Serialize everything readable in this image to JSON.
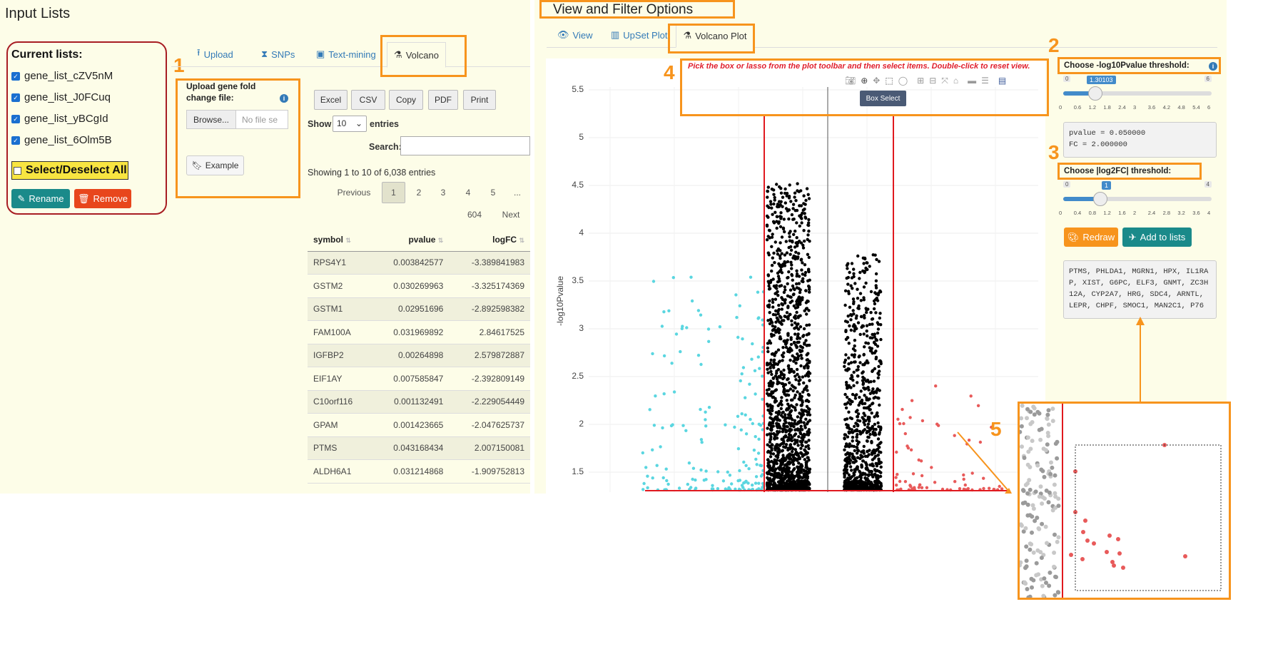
{
  "left": {
    "title": "Input Lists",
    "current_lists_title": "Current lists:",
    "lists": [
      "gene_list_cZV5nM",
      "gene_list_J0FCuq",
      "gene_list_yBCgId",
      "gene_list_6Olm5B"
    ],
    "select_all": "Select/Deselect All",
    "rename": "Rename",
    "remove": "Remove",
    "tabs": [
      "Upload",
      "SNPs",
      "Text-mining",
      "Volcano"
    ],
    "upload_label": "Upload gene fold change file:",
    "browse": "Browse...",
    "no_file": "No file se",
    "example": "Example",
    "buttons": [
      "Excel",
      "CSV",
      "Copy",
      "PDF",
      "Print"
    ],
    "show": "Show",
    "show_value": "10",
    "entries": "entries",
    "search_label": "Search:",
    "showing": "Showing 1 to 10 of 6,038 entries",
    "pagination": [
      "Previous",
      "1",
      "2",
      "3",
      "4",
      "5",
      "...",
      "604",
      "Next"
    ],
    "table": {
      "headers": [
        "symbol",
        "pvalue",
        "logFC"
      ],
      "rows": [
        [
          "RPS4Y1",
          "0.003842577",
          "-3.389841983"
        ],
        [
          "GSTM2",
          "0.030269963",
          "-3.325174369"
        ],
        [
          "GSTM1",
          "0.02951696",
          "-2.892598382"
        ],
        [
          "FAM100A",
          "0.031969892",
          "2.84617525"
        ],
        [
          "IGFBP2",
          "0.00264898",
          "2.579872887"
        ],
        [
          "EIF1AY",
          "0.007585847",
          "-2.392809149"
        ],
        [
          "C10orf116",
          "0.001132491",
          "-2.229054449"
        ],
        [
          "GPAM",
          "0.001423665",
          "-2.047625737"
        ],
        [
          "PTMS",
          "0.043168434",
          "2.007150081"
        ],
        [
          "ALDH6A1",
          "0.031214868",
          "-1.909752813"
        ]
      ]
    }
  },
  "right": {
    "title": "View and Filter Options",
    "tabs": [
      "View",
      "UpSet Plot",
      "Volcano Plot"
    ],
    "instruction": "Pick the box or lasso from the plot toolbar and then select items. Double-click to reset view.",
    "tooltip": "Box Select",
    "ylabel": "-log10Pvalue",
    "yticks": [
      "5.5",
      "5",
      "4.5",
      "4",
      "3.5",
      "3",
      "2.5",
      "2",
      "1.5"
    ],
    "pval_label": "Choose -log10Pvalue threshold:",
    "pval_min": "0",
    "pval_max": "6",
    "pval_value": "1.30103",
    "pval_value_num": 1.30103,
    "pval_ticks": [
      "0",
      "0.6",
      "1.2",
      "1.8",
      "2.4",
      "3",
      "3.6",
      "4.2",
      "4.8",
      "5.4",
      "6"
    ],
    "summary_line1": "pvalue = 0.050000",
    "summary_line2": "FC = 2.000000",
    "fc_label": "Choose |log2FC| threshold:",
    "fc_min": "0",
    "fc_max": "4",
    "fc_value": "1",
    "fc_value_num": 1,
    "fc_ticks": [
      "0",
      "0.4",
      "0.8",
      "1.2",
      "1.6",
      "2",
      "2.4",
      "2.8",
      "3.2",
      "3.6",
      "4"
    ],
    "redraw": "Redraw",
    "add_to_lists": "Add to lists",
    "genes_line1": "PTMS, PHLDA1, MGRN1, HPX, IL1RA",
    "genes_line2": "P, XIST, G6PC, ELF3, GNMT, ZC3H",
    "genes_line3": "12A, CYP2A7, HRG, SDC4, ARNTL,",
    "genes_line4": "LEPR, CHPF, SMOC1, MAN2C1, P76"
  },
  "annotations": [
    "1",
    "2",
    "3",
    "4",
    "5"
  ],
  "colors": {
    "orange": "#f7941d",
    "teal": "#1a8a8a",
    "red_button": "#e8461c",
    "cyan_points": "#5ad6e0",
    "red_points": "#e85a5a",
    "threshold_line": "#e0191f",
    "panel_bg": "#fdfde8"
  }
}
